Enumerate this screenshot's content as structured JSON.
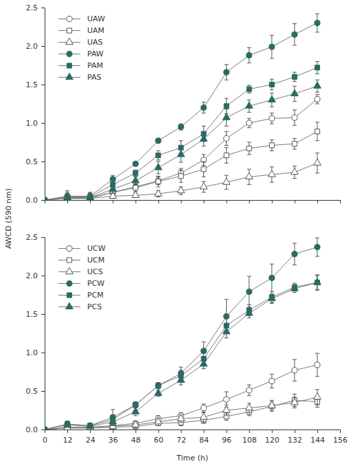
{
  "chart_data": [
    {
      "type": "line",
      "ylabel": "AWCD (590 nm)",
      "x": [
        0,
        12,
        24,
        36,
        48,
        60,
        72,
        84,
        96,
        108,
        120,
        132,
        144
      ],
      "xlim": [
        0,
        156
      ],
      "xticks": [
        0,
        12,
        24,
        36,
        48,
        60,
        72,
        84,
        96,
        108,
        120,
        132,
        144,
        156
      ],
      "ylim": [
        0,
        2.5
      ],
      "yticks": [
        {
          "value": 0,
          "label": "0.0"
        },
        {
          "value": 0.5,
          "label": "0.5"
        },
        {
          "value": 1,
          "label": "1.0"
        },
        {
          "value": 1.5,
          "label": "1.5"
        },
        {
          "value": 2,
          "label": "2.0"
        },
        {
          "value": 2.5,
          "label": "2.5"
        }
      ],
      "tick_labels": "y",
      "legend": "upper left",
      "series": [
        {
          "name": "UAW",
          "color": "#555555",
          "marker": "circle-open",
          "values": [
            0,
            0.03,
            0.03,
            0.1,
            0.17,
            0.25,
            0.35,
            0.52,
            0.8,
            1.0,
            1.06,
            1.07,
            1.31
          ],
          "errors": [
            0.01,
            0.05,
            0.04,
            0.04,
            0.04,
            0.05,
            0.06,
            0.07,
            0.09,
            0.06,
            0.07,
            0.1,
            0.06
          ]
        },
        {
          "name": "UAM",
          "color": "#555555",
          "marker": "square-open",
          "values": [
            0,
            0.02,
            0.02,
            0.1,
            0.16,
            0.24,
            0.31,
            0.4,
            0.58,
            0.67,
            0.71,
            0.73,
            0.89
          ],
          "errors": [
            0.01,
            0.04,
            0.04,
            0.04,
            0.05,
            0.07,
            0.08,
            0.1,
            0.1,
            0.08,
            0.07,
            0.07,
            0.12
          ]
        },
        {
          "name": "UAS",
          "color": "#555555",
          "marker": "triangle-open",
          "values": [
            0,
            0.02,
            0.02,
            0.05,
            0.06,
            0.08,
            0.12,
            0.17,
            0.23,
            0.3,
            0.33,
            0.36,
            0.48
          ],
          "errors": [
            0.01,
            0.04,
            0.04,
            0.03,
            0.03,
            0.04,
            0.05,
            0.07,
            0.09,
            0.1,
            0.1,
            0.08,
            0.13
          ]
        },
        {
          "name": "PAW",
          "color": "#2a6b65",
          "marker": "circle",
          "values": [
            0,
            0.05,
            0.05,
            0.27,
            0.47,
            0.77,
            0.95,
            1.2,
            1.66,
            1.88,
            1.99,
            2.15,
            2.3
          ],
          "errors": [
            0.01,
            0.07,
            0.05,
            0.05,
            0.02,
            0.03,
            0.04,
            0.07,
            0.1,
            0.1,
            0.15,
            0.14,
            0.12
          ]
        },
        {
          "name": "PAM",
          "color": "#2a6b65",
          "marker": "square",
          "values": [
            0,
            0.04,
            0.04,
            0.2,
            0.35,
            0.58,
            0.68,
            0.86,
            1.22,
            1.44,
            1.5,
            1.6,
            1.72
          ],
          "errors": [
            0.01,
            0.06,
            0.05,
            0.05,
            0.04,
            0.06,
            0.09,
            0.1,
            0.1,
            0.05,
            0.07,
            0.06,
            0.08
          ]
        },
        {
          "name": "PAS",
          "color": "#2a6b65",
          "marker": "triangle",
          "values": [
            0,
            0.03,
            0.03,
            0.14,
            0.25,
            0.42,
            0.59,
            0.79,
            1.07,
            1.22,
            1.3,
            1.38,
            1.48
          ],
          "errors": [
            0.01,
            0.05,
            0.05,
            0.05,
            0.05,
            0.08,
            0.1,
            0.09,
            0.11,
            0.08,
            0.09,
            0.1,
            0.08
          ]
        }
      ]
    },
    {
      "type": "line",
      "xlabel": "Time (h)",
      "x": [
        0,
        12,
        24,
        36,
        48,
        60,
        72,
        84,
        96,
        108,
        120,
        132,
        144
      ],
      "xlim": [
        0,
        156
      ],
      "xticks": [
        0,
        12,
        24,
        36,
        48,
        60,
        72,
        84,
        96,
        108,
        120,
        132,
        144,
        156
      ],
      "ylim": [
        0,
        2.5
      ],
      "yticks": [
        {
          "value": 0,
          "label": "0.0"
        },
        {
          "value": 0.5,
          "label": "0.5"
        },
        {
          "value": 1,
          "label": "1.0"
        },
        {
          "value": 1.5,
          "label": "1.5"
        },
        {
          "value": 2,
          "label": "2.0"
        },
        {
          "value": 2.5,
          "label": "2.5"
        }
      ],
      "legend": "upper left",
      "series": [
        {
          "name": "UCW",
          "color": "#555555",
          "marker": "circle-open",
          "values": [
            0,
            0.03,
            0.03,
            0.05,
            0.08,
            0.14,
            0.18,
            0.28,
            0.39,
            0.51,
            0.63,
            0.77,
            0.84
          ],
          "errors": [
            0.01,
            0.03,
            0.03,
            0.03,
            0.03,
            0.04,
            0.04,
            0.05,
            0.1,
            0.07,
            0.09,
            0.14,
            0.15
          ]
        },
        {
          "name": "UCM",
          "color": "#555555",
          "marker": "square-open",
          "values": [
            0,
            0.02,
            0.02,
            0.03,
            0.04,
            0.08,
            0.09,
            0.12,
            0.17,
            0.23,
            0.3,
            0.38,
            0.36
          ],
          "errors": [
            0.01,
            0.03,
            0.03,
            0.03,
            0.03,
            0.03,
            0.04,
            0.04,
            0.05,
            0.05,
            0.06,
            0.08,
            0.07
          ]
        },
        {
          "name": "UCS",
          "color": "#555555",
          "marker": "triangle-open",
          "values": [
            0,
            0.02,
            0.02,
            0.04,
            0.06,
            0.1,
            0.14,
            0.16,
            0.25,
            0.28,
            0.31,
            0.35,
            0.42
          ],
          "errors": [
            0.01,
            0.03,
            0.03,
            0.03,
            0.04,
            0.05,
            0.05,
            0.06,
            0.07,
            0.06,
            0.07,
            0.07,
            0.1
          ]
        },
        {
          "name": "PCW",
          "color": "#2a6b65",
          "marker": "circle",
          "values": [
            0,
            0.07,
            0.05,
            0.16,
            0.32,
            0.57,
            0.73,
            1.02,
            1.47,
            1.79,
            1.97,
            2.28,
            2.37
          ],
          "errors": [
            0.01,
            0.04,
            0.03,
            0.1,
            0.04,
            0.04,
            0.08,
            0.12,
            0.22,
            0.2,
            0.18,
            0.14,
            0.12
          ]
        },
        {
          "name": "PCM",
          "color": "#2a6b65",
          "marker": "square",
          "values": [
            0,
            0.07,
            0.05,
            0.13,
            0.32,
            0.57,
            0.7,
            0.92,
            1.35,
            1.55,
            1.72,
            1.85,
            1.91
          ],
          "errors": [
            0.01,
            0.04,
            0.03,
            0.05,
            0.03,
            0.03,
            0.07,
            0.08,
            0.1,
            0.07,
            0.07,
            0.05,
            0.09
          ]
        },
        {
          "name": "PCS",
          "color": "#2a6b65",
          "marker": "triangle",
          "values": [
            0,
            0.06,
            0.04,
            0.1,
            0.23,
            0.47,
            0.64,
            0.85,
            1.27,
            1.51,
            1.7,
            1.83,
            1.91
          ],
          "errors": [
            0.01,
            0.03,
            0.03,
            0.05,
            0.05,
            0.04,
            0.06,
            0.06,
            0.08,
            0.06,
            0.06,
            0.05,
            0.1
          ]
        }
      ]
    }
  ]
}
